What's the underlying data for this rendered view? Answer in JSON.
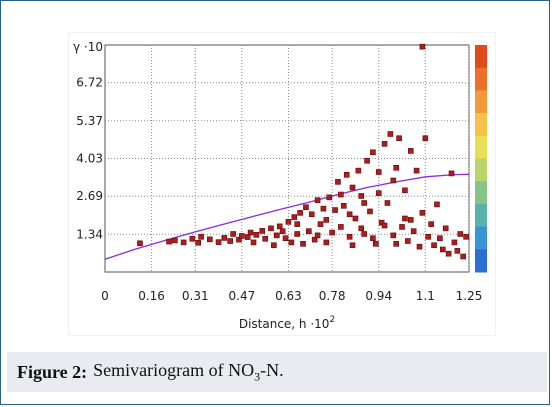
{
  "chart_data": {
    "type": "scatter",
    "title": "",
    "xlabel": "Distance, h",
    "xlabel_exp": "·10",
    "xlabel_sup": "2",
    "ylabel": "γ ·10",
    "xlim": [
      0,
      1.25
    ],
    "ylim": [
      0,
      8.06
    ],
    "xticks": [
      "0",
      "0.16",
      "0.31",
      "0.47",
      "0.63",
      "0.78",
      "0.94",
      "1.1",
      "1.25"
    ],
    "yticks": [
      "1.34",
      "2.69",
      "4.03",
      "5.37",
      "6.72"
    ],
    "ytick_values": [
      1.34,
      2.69,
      4.03,
      5.37,
      6.72
    ],
    "grid": true,
    "colors": {
      "points": "#b01c1c",
      "model": "#8a2be2",
      "grid": "#888888",
      "colorbar": [
        "#e04a1c",
        "#ec6f2a",
        "#f29a38",
        "#f6c248",
        "#e8df55",
        "#b9d66a",
        "#86c48a",
        "#5ab2ad",
        "#3b94d6",
        "#2b6fd4"
      ]
    },
    "series": [
      {
        "type": "scatter",
        "points": [
          [
            0.12,
            1.02
          ],
          [
            0.22,
            1.08
          ],
          [
            0.24,
            1.12
          ],
          [
            0.27,
            1.05
          ],
          [
            0.3,
            1.18
          ],
          [
            0.32,
            1.04
          ],
          [
            0.33,
            1.25
          ],
          [
            0.36,
            1.16
          ],
          [
            0.39,
            1.06
          ],
          [
            0.41,
            1.21
          ],
          [
            0.43,
            1.1
          ],
          [
            0.44,
            1.35
          ],
          [
            0.46,
            1.15
          ],
          [
            0.47,
            1.28
          ],
          [
            0.49,
            1.24
          ],
          [
            0.5,
            1.4
          ],
          [
            0.51,
            1.05
          ],
          [
            0.52,
            1.32
          ],
          [
            0.54,
            1.46
          ],
          [
            0.55,
            1.18
          ],
          [
            0.57,
            1.55
          ],
          [
            0.58,
            0.95
          ],
          [
            0.59,
            1.3
          ],
          [
            0.6,
            1.62
          ],
          [
            0.62,
            1.2
          ],
          [
            0.63,
            1.78
          ],
          [
            0.64,
            1.05
          ],
          [
            0.65,
            1.95
          ],
          [
            0.66,
            1.35
          ],
          [
            0.67,
            2.1
          ],
          [
            0.68,
            1.0
          ],
          [
            0.69,
            2.3
          ],
          [
            0.7,
            1.45
          ],
          [
            0.71,
            2.05
          ],
          [
            0.72,
            1.15
          ],
          [
            0.73,
            2.55
          ],
          [
            0.74,
            1.7
          ],
          [
            0.75,
            2.25
          ],
          [
            0.76,
            1.05
          ],
          [
            0.77,
            2.65
          ],
          [
            0.78,
            1.4
          ],
          [
            0.79,
            2.2
          ],
          [
            0.8,
            3.2
          ],
          [
            0.81,
            1.6
          ],
          [
            0.82,
            2.35
          ],
          [
            0.83,
            3.45
          ],
          [
            0.84,
            1.25
          ],
          [
            0.85,
            3.0
          ],
          [
            0.86,
            1.9
          ],
          [
            0.87,
            3.6
          ],
          [
            0.88,
            2.7
          ],
          [
            0.89,
            1.35
          ],
          [
            0.9,
            3.95
          ],
          [
            0.91,
            2.15
          ],
          [
            0.92,
            4.25
          ],
          [
            0.93,
            1.0
          ],
          [
            0.94,
            3.55
          ],
          [
            0.95,
            1.75
          ],
          [
            0.96,
            4.55
          ],
          [
            0.97,
            2.45
          ],
          [
            0.98,
            4.9
          ],
          [
            0.99,
            1.3
          ],
          [
            1.0,
            3.7
          ],
          [
            1.01,
            4.75
          ],
          [
            1.02,
            1.6
          ],
          [
            1.03,
            2.9
          ],
          [
            1.04,
            1.1
          ],
          [
            1.05,
            4.3
          ],
          [
            1.06,
            1.45
          ],
          [
            1.07,
            3.6
          ],
          [
            1.08,
            0.9
          ],
          [
            1.09,
            2.1
          ],
          [
            1.1,
            4.75
          ],
          [
            1.11,
            1.25
          ],
          [
            1.12,
            1.7
          ],
          [
            1.13,
            0.95
          ],
          [
            1.14,
            2.4
          ],
          [
            1.15,
            1.2
          ],
          [
            1.16,
            0.8
          ],
          [
            1.17,
            1.55
          ],
          [
            1.18,
            0.65
          ],
          [
            1.19,
            3.5
          ],
          [
            1.2,
            1.05
          ],
          [
            1.21,
            0.75
          ],
          [
            1.22,
            1.35
          ],
          [
            1.23,
            0.55
          ],
          [
            1.24,
            1.25
          ],
          [
            1.09,
            8.0
          ],
          [
            0.85,
            0.95
          ],
          [
            0.88,
            1.55
          ],
          [
            0.92,
            1.2
          ],
          [
            0.96,
            1.65
          ],
          [
            1.0,
            1.0
          ],
          [
            1.05,
            1.85
          ],
          [
            0.73,
            1.3
          ],
          [
            0.76,
            1.85
          ],
          [
            0.81,
            2.75
          ],
          [
            0.84,
            2.05
          ],
          [
            0.89,
            2.45
          ],
          [
            0.94,
            2.8
          ],
          [
            0.99,
            3.25
          ],
          [
            1.03,
            1.9
          ],
          [
            0.66,
            1.7
          ],
          [
            0.61,
            1.45
          ]
        ]
      },
      {
        "type": "line",
        "name": "",
        "x": [
          0,
          0.1,
          0.2,
          0.3,
          0.4,
          0.5,
          0.6,
          0.7,
          0.8,
          0.9,
          1.0,
          1.1,
          1.2,
          1.25
        ],
        "y": [
          0.45,
          0.8,
          1.1,
          1.4,
          1.68,
          1.95,
          2.22,
          2.48,
          2.75,
          3.0,
          3.2,
          3.38,
          3.46,
          3.47
        ]
      }
    ]
  },
  "figure_caption": {
    "label": "Figure 2:",
    "text_prefix": "Semivariogram of NO",
    "subscript": "3",
    "text_suffix": "-N."
  }
}
